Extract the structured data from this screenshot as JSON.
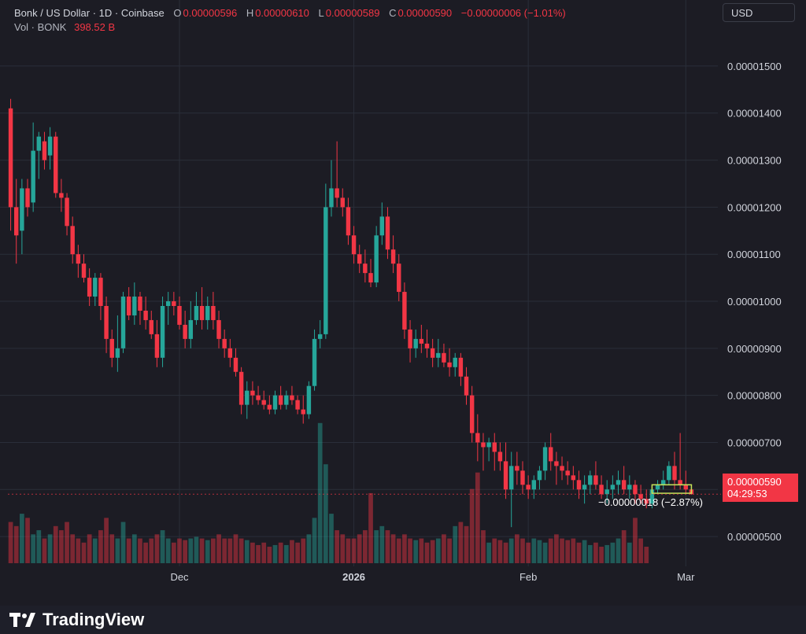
{
  "header": {
    "symbol": "Bonk / US Dollar · 1D · Coinbase",
    "o_label": "O",
    "o_value": "0.00000596",
    "h_label": "H",
    "h_value": "0.00000610",
    "l_label": "L",
    "l_value": "0.00000589",
    "c_label": "C",
    "c_value": "0.00000590",
    "change": "−0.00000006 (−1.01%)",
    "vol_label": "Vol · BONK",
    "vol_value": "398.52 B"
  },
  "currency_button": "USD",
  "last_price": {
    "value": "0.00000590",
    "countdown": "04:29:53"
  },
  "measure_label": "−0.00000018 (−2.87%)",
  "brand": "TradingView",
  "colors": {
    "up": "#26a69a",
    "down": "#f23645",
    "background": "#1c1c24",
    "grid": "#2a2e39"
  },
  "chart_data": {
    "type": "candlestick",
    "y_ticks": [
      "0.00001500",
      "0.00001400",
      "0.00001300",
      "0.00001200",
      "0.00001100",
      "0.00001000",
      "0.00000900",
      "0.00000800",
      "0.00000700",
      "0.00000600",
      "0.00000500"
    ],
    "y_tick_values": [
      1500,
      1400,
      1300,
      1200,
      1100,
      1000,
      900,
      800,
      700,
      600,
      500
    ],
    "y_unit_scale": 1e-08,
    "x_ticks": [
      {
        "label": "Dec",
        "index": 30
      },
      {
        "label": "2026",
        "index": 61
      },
      {
        "label": "Feb",
        "index": 92
      },
      {
        "label": "Mar",
        "index": 120
      }
    ],
    "ohlc": [
      [
        1410,
        1430,
        1150,
        1200
      ],
      [
        1200,
        1260,
        1080,
        1140
      ],
      [
        1150,
        1260,
        1100,
        1240
      ],
      [
        1240,
        1260,
        1180,
        1200
      ],
      [
        1210,
        1380,
        1190,
        1320
      ],
      [
        1320,
        1360,
        1260,
        1350
      ],
      [
        1340,
        1360,
        1280,
        1300
      ],
      [
        1310,
        1370,
        1280,
        1350
      ],
      [
        1350,
        1360,
        1220,
        1230
      ],
      [
        1230,
        1260,
        1190,
        1220
      ],
      [
        1220,
        1230,
        1140,
        1160
      ],
      [
        1160,
        1180,
        1080,
        1100
      ],
      [
        1100,
        1120,
        1050,
        1080
      ],
      [
        1080,
        1100,
        1040,
        1050
      ],
      [
        1050,
        1070,
        990,
        1010
      ],
      [
        1010,
        1060,
        990,
        1050
      ],
      [
        1050,
        1060,
        960,
        990
      ],
      [
        990,
        1010,
        890,
        920
      ],
      [
        920,
        940,
        860,
        880
      ],
      [
        880,
        970,
        850,
        900
      ],
      [
        900,
        1020,
        890,
        1010
      ],
      [
        1010,
        1030,
        960,
        970
      ],
      [
        970,
        1040,
        950,
        1010
      ],
      [
        1010,
        1020,
        950,
        980
      ],
      [
        980,
        1010,
        940,
        960
      ],
      [
        960,
        980,
        920,
        930
      ],
      [
        930,
        960,
        860,
        880
      ],
      [
        880,
        1010,
        860,
        990
      ],
      [
        990,
        1020,
        950,
        1000
      ],
      [
        1000,
        1020,
        970,
        990
      ],
      [
        990,
        1010,
        940,
        950
      ],
      [
        950,
        980,
        900,
        920
      ],
      [
        920,
        1000,
        900,
        960
      ],
      [
        960,
        1020,
        950,
        990
      ],
      [
        990,
        1030,
        940,
        960
      ],
      [
        960,
        1010,
        940,
        990
      ],
      [
        990,
        1020,
        940,
        960
      ],
      [
        960,
        980,
        900,
        920
      ],
      [
        920,
        940,
        880,
        900
      ],
      [
        900,
        920,
        860,
        880
      ],
      [
        880,
        900,
        840,
        850
      ],
      [
        850,
        860,
        760,
        780
      ],
      [
        780,
        830,
        750,
        810
      ],
      [
        810,
        830,
        780,
        800
      ],
      [
        800,
        820,
        780,
        790
      ],
      [
        790,
        810,
        770,
        780
      ],
      [
        780,
        800,
        760,
        770
      ],
      [
        770,
        810,
        760,
        800
      ],
      [
        800,
        820,
        770,
        780
      ],
      [
        780,
        810,
        770,
        800
      ],
      [
        800,
        820,
        780,
        790
      ],
      [
        790,
        800,
        760,
        770
      ],
      [
        770,
        800,
        740,
        760
      ],
      [
        760,
        830,
        750,
        820
      ],
      [
        820,
        940,
        810,
        920
      ],
      [
        920,
        960,
        900,
        930
      ],
      [
        930,
        1250,
        920,
        1200
      ],
      [
        1200,
        1300,
        1180,
        1240
      ],
      [
        1240,
        1340,
        1200,
        1220
      ],
      [
        1220,
        1240,
        1180,
        1200
      ],
      [
        1200,
        1220,
        1120,
        1140
      ],
      [
        1140,
        1160,
        1080,
        1100
      ],
      [
        1100,
        1120,
        1060,
        1080
      ],
      [
        1080,
        1110,
        1040,
        1060
      ],
      [
        1060,
        1090,
        1030,
        1040
      ],
      [
        1040,
        1160,
        1030,
        1140
      ],
      [
        1140,
        1210,
        1120,
        1180
      ],
      [
        1180,
        1200,
        1090,
        1110
      ],
      [
        1110,
        1140,
        1060,
        1080
      ],
      [
        1080,
        1100,
        1000,
        1020
      ],
      [
        1020,
        1040,
        920,
        940
      ],
      [
        940,
        960,
        870,
        900
      ],
      [
        900,
        940,
        880,
        920
      ],
      [
        920,
        950,
        890,
        910
      ],
      [
        910,
        940,
        880,
        900
      ],
      [
        900,
        920,
        860,
        880
      ],
      [
        880,
        920,
        860,
        890
      ],
      [
        890,
        910,
        860,
        870
      ],
      [
        870,
        900,
        840,
        860
      ],
      [
        860,
        890,
        840,
        880
      ],
      [
        880,
        890,
        820,
        840
      ],
      [
        840,
        860,
        780,
        800
      ],
      [
        800,
        820,
        700,
        720
      ],
      [
        720,
        760,
        660,
        700
      ],
      [
        700,
        720,
        640,
        690
      ],
      [
        690,
        710,
        660,
        700
      ],
      [
        700,
        720,
        640,
        680
      ],
      [
        680,
        700,
        640,
        660
      ],
      [
        660,
        700,
        580,
        600
      ],
      [
        600,
        680,
        520,
        650
      ],
      [
        650,
        680,
        610,
        640
      ],
      [
        640,
        660,
        590,
        610
      ],
      [
        610,
        630,
        580,
        600
      ],
      [
        600,
        630,
        580,
        620
      ],
      [
        620,
        650,
        600,
        640
      ],
      [
        640,
        700,
        620,
        690
      ],
      [
        690,
        720,
        640,
        660
      ],
      [
        660,
        680,
        610,
        650
      ],
      [
        650,
        670,
        620,
        640
      ],
      [
        640,
        660,
        610,
        630
      ],
      [
        630,
        650,
        600,
        620
      ],
      [
        620,
        640,
        580,
        600
      ],
      [
        600,
        630,
        570,
        610
      ],
      [
        610,
        640,
        590,
        630
      ],
      [
        630,
        660,
        600,
        610
      ],
      [
        610,
        630,
        580,
        590
      ],
      [
        590,
        620,
        570,
        600
      ],
      [
        600,
        630,
        580,
        610
      ],
      [
        610,
        640,
        590,
        620
      ],
      [
        620,
        650,
        590,
        600
      ],
      [
        600,
        630,
        580,
        610
      ],
      [
        610,
        620,
        570,
        590
      ],
      [
        590,
        610,
        570,
        580
      ],
      [
        580,
        600,
        560,
        570
      ],
      [
        570,
        610,
        560,
        600
      ],
      [
        600,
        620,
        590,
        610
      ],
      [
        610,
        640,
        600,
        620
      ],
      [
        620,
        660,
        610,
        650
      ],
      [
        650,
        680,
        600,
        620
      ],
      [
        620,
        720,
        600,
        610
      ],
      [
        610,
        640,
        590,
        600
      ],
      [
        600,
        610,
        589,
        590
      ]
    ],
    "volume_rel": [
      0.5,
      0.45,
      0.6,
      0.55,
      0.35,
      0.4,
      0.3,
      0.35,
      0.45,
      0.4,
      0.5,
      0.35,
      0.3,
      0.25,
      0.35,
      0.3,
      0.4,
      0.55,
      0.35,
      0.3,
      0.5,
      0.3,
      0.35,
      0.3,
      0.25,
      0.3,
      0.35,
      0.4,
      0.3,
      0.25,
      0.3,
      0.28,
      0.3,
      0.32,
      0.3,
      0.28,
      0.3,
      0.35,
      0.3,
      0.3,
      0.35,
      0.3,
      0.28,
      0.25,
      0.22,
      0.25,
      0.2,
      0.22,
      0.25,
      0.22,
      0.28,
      0.25,
      0.3,
      0.35,
      0.55,
      1.7,
      1.2,
      0.6,
      0.4,
      0.35,
      0.3,
      0.3,
      0.35,
      0.4,
      0.85,
      0.4,
      0.45,
      0.4,
      0.35,
      0.3,
      0.35,
      0.3,
      0.28,
      0.3,
      0.25,
      0.28,
      0.3,
      0.35,
      0.3,
      0.45,
      0.5,
      0.45,
      0.9,
      1.1,
      0.4,
      0.25,
      0.3,
      0.28,
      0.25,
      0.3,
      0.35,
      0.3,
      0.25,
      0.3,
      0.28,
      0.25,
      0.3,
      0.35,
      0.3,
      0.28,
      0.3,
      0.25,
      0.28,
      0.22,
      0.25,
      0.2,
      0.22,
      0.25,
      0.3,
      0.4,
      0.25,
      0.55,
      0.3,
      0.2
    ]
  }
}
